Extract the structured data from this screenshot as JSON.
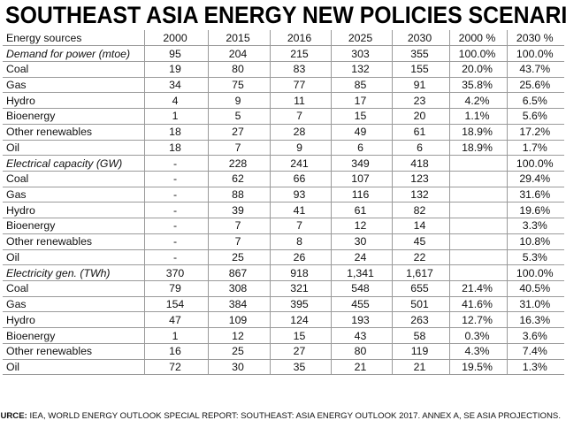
{
  "chart_data": {
    "type": "table",
    "title": "SOUTHEAST ASIA ENERGY NEW POLICIES SCENARIO",
    "columns": [
      "Energy sources",
      "2000",
      "2015",
      "2016",
      "2025",
      "2030",
      "2000 %",
      "2030 %"
    ],
    "rows": [
      {
        "label": "Demand for power (mtoe)",
        "section": true,
        "values": [
          "95",
          "204",
          "215",
          "303",
          "355",
          "100.0%",
          "100.0%"
        ]
      },
      {
        "label": "Coal",
        "values": [
          "19",
          "80",
          "83",
          "132",
          "155",
          "20.0%",
          "43.7%"
        ]
      },
      {
        "label": "Gas",
        "values": [
          "34",
          "75",
          "77",
          "85",
          "91",
          "35.8%",
          "25.6%"
        ]
      },
      {
        "label": "Hydro",
        "values": [
          "4",
          "9",
          "11",
          "17",
          "23",
          "4.2%",
          "6.5%"
        ]
      },
      {
        "label": "Bioenergy",
        "values": [
          "1",
          "5",
          "7",
          "15",
          "20",
          "1.1%",
          "5.6%"
        ]
      },
      {
        "label": "Other renewables",
        "values": [
          "18",
          "27",
          "28",
          "49",
          "61",
          "18.9%",
          "17.2%"
        ]
      },
      {
        "label": "Oil",
        "values": [
          "18",
          "7",
          "9",
          "6",
          "6",
          "18.9%",
          "1.7%"
        ]
      },
      {
        "label": "Electrical capacity (GW)",
        "section": true,
        "values": [
          "-",
          "228",
          "241",
          "349",
          "418",
          "",
          "100.0%"
        ]
      },
      {
        "label": "Coal",
        "values": [
          "-",
          "62",
          "66",
          "107",
          "123",
          "",
          "29.4%"
        ]
      },
      {
        "label": "Gas",
        "values": [
          "-",
          "88",
          "93",
          "116",
          "132",
          "",
          "31.6%"
        ]
      },
      {
        "label": "Hydro",
        "values": [
          "-",
          "39",
          "41",
          "61",
          "82",
          "",
          "19.6%"
        ]
      },
      {
        "label": "Bioenergy",
        "values": [
          "-",
          "7",
          "7",
          "12",
          "14",
          "",
          "3.3%"
        ]
      },
      {
        "label": "Other renewables",
        "values": [
          "-",
          "7",
          "8",
          "30",
          "45",
          "",
          "10.8%"
        ]
      },
      {
        "label": "Oil",
        "values": [
          "-",
          "25",
          "26",
          "24",
          "22",
          "",
          "5.3%"
        ]
      },
      {
        "label": "Electricity gen. (TWh)",
        "section": true,
        "values": [
          "370",
          "867",
          "918",
          "1,341",
          "1,617",
          "",
          "100.0%"
        ]
      },
      {
        "label": "Coal",
        "values": [
          "79",
          "308",
          "321",
          "548",
          "655",
          "21.4%",
          "40.5%"
        ]
      },
      {
        "label": "Gas",
        "values": [
          "154",
          "384",
          "395",
          "455",
          "501",
          "41.6%",
          "31.0%"
        ]
      },
      {
        "label": "Hydro",
        "values": [
          "47",
          "109",
          "124",
          "193",
          "263",
          "12.7%",
          "16.3%"
        ]
      },
      {
        "label": "Bioenergy",
        "values": [
          "1",
          "12",
          "15",
          "43",
          "58",
          "0.3%",
          "3.6%"
        ]
      },
      {
        "label": "Other renewables",
        "values": [
          "16",
          "25",
          "27",
          "80",
          "119",
          "4.3%",
          "7.4%"
        ]
      },
      {
        "label": "Oil",
        "values": [
          "72",
          "30",
          "35",
          "21",
          "21",
          "19.5%",
          "1.3%"
        ]
      }
    ],
    "source_label": "SOURCE:",
    "source_text": " IEA, WORLD ENERGY OUTLOOK SPECIAL REPORT: SOUTHEAST: ASIA ENERGY OUTLOOK 2017. ANNEX A, SE ASIA PROJECTIONS."
  }
}
